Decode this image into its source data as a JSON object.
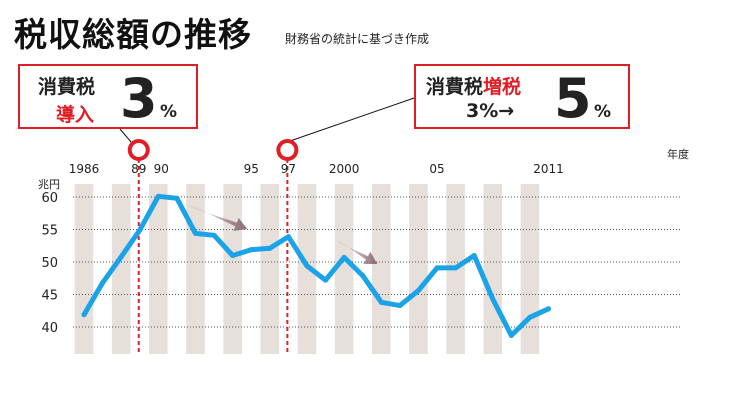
{
  "title": "税収総額の推移",
  "subtitle": "財務省の統計に基づき作成",
  "callout_left": {
    "line1": "消費税",
    "line2": "導入",
    "value": "3",
    "unit": "%"
  },
  "callout_right": {
    "line1_a": "消費税",
    "line1_b": "増税",
    "line2": "3%→",
    "value": "5",
    "unit": "%"
  },
  "colors": {
    "accent_red": "#e01e25",
    "line_blue": "#1aa3e8",
    "stripe": "#e6dfda",
    "arrow": "#8a6a74"
  },
  "chart_data": {
    "type": "line",
    "title": "税収総額の推移",
    "xlabel": "年度",
    "ylabel": "兆円",
    "x": [
      1986,
      1987,
      1988,
      1989,
      1990,
      1991,
      1992,
      1993,
      1994,
      1995,
      1996,
      1997,
      1998,
      1999,
      2000,
      2001,
      2002,
      2003,
      2004,
      2005,
      2006,
      2007,
      2008,
      2009,
      2010,
      2011
    ],
    "series": [
      {
        "name": "税収総額",
        "values": [
          41.9,
          46.8,
          50.8,
          54.9,
          60.1,
          59.8,
          54.4,
          54.1,
          51.0,
          51.9,
          52.1,
          53.9,
          49.4,
          47.2,
          50.7,
          47.9,
          43.8,
          43.3,
          45.6,
          49.1,
          49.1,
          51.0,
          44.3,
          38.7,
          41.5,
          42.8
        ]
      }
    ],
    "xticks": [
      "1986",
      "89",
      "90",
      "95",
      "97",
      "2000",
      "05",
      "2011"
    ],
    "yticks": [
      40,
      45,
      50,
      55,
      60
    ],
    "ylim": [
      35,
      62
    ],
    "events": [
      {
        "year": 1989,
        "label": "消費税導入 3%"
      },
      {
        "year": 1997,
        "label": "消費税増税 3%→5%"
      }
    ],
    "trend_arrows": [
      [
        1992,
        1995
      ],
      [
        2000,
        2002
      ]
    ],
    "grid": true
  }
}
